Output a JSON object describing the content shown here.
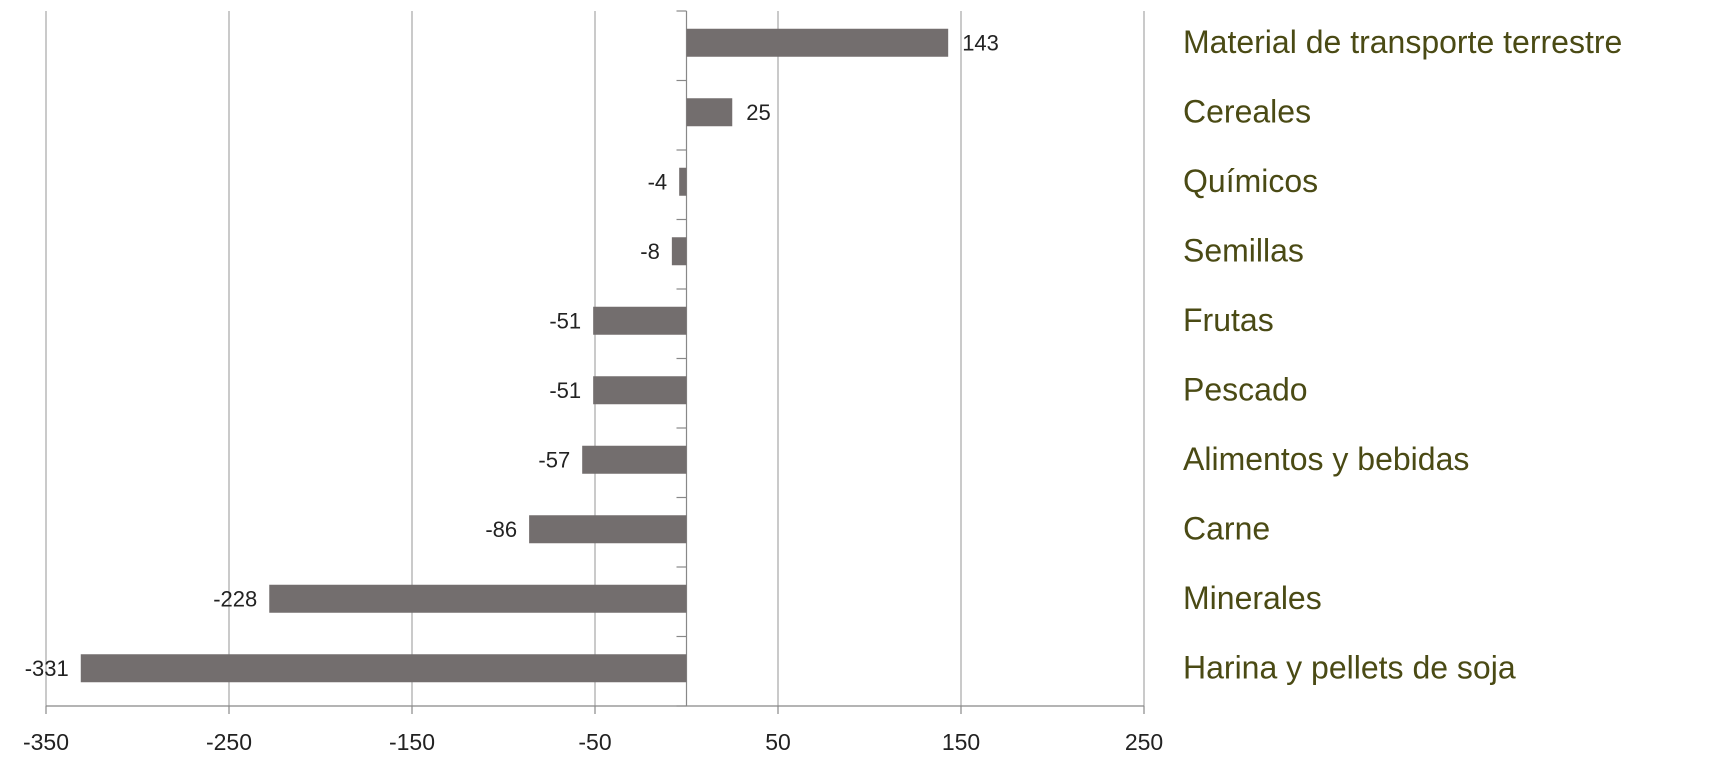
{
  "chart_data": {
    "type": "barh",
    "categories": [
      "Material de transporte terrestre",
      "Cereales",
      "Químicos",
      "Semillas",
      "Frutas",
      "Pescado",
      "Alimentos y bebidas",
      "Carne",
      "Minerales",
      "Harina y pellets de soja"
    ],
    "values": [
      143,
      25,
      -4,
      -8,
      -51,
      -51,
      -57,
      -86,
      -228,
      -331
    ],
    "color": "#736e6e",
    "label_color": "#4a4a14",
    "xlim": [
      -350,
      250
    ],
    "xticks": [
      -350,
      -250,
      -150,
      -50,
      50,
      150,
      250
    ],
    "grid": true
  }
}
